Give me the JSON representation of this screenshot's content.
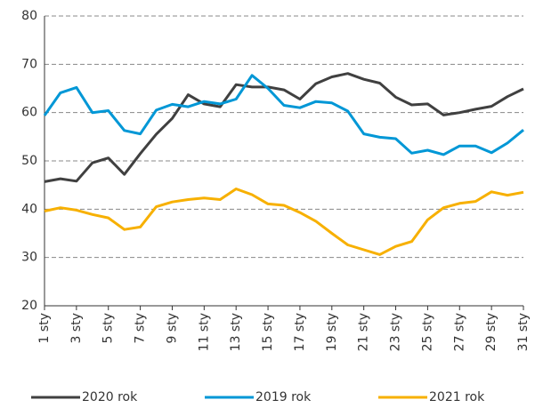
{
  "chart_data": {
    "type": "line",
    "categories": [
      "1 sty",
      null,
      "3 sty",
      null,
      "5 sty",
      null,
      "7 sty",
      null,
      "9 sty",
      null,
      "11 sty",
      null,
      "13 sty",
      null,
      "15 sty",
      null,
      "17 sty",
      null,
      "19 sty",
      null,
      "21 sty",
      null,
      "23 sty",
      null,
      "25 sty",
      null,
      "27 sty",
      null,
      "29 sty",
      null,
      "31 sty"
    ],
    "series": [
      {
        "name": "2020 rok",
        "color": "#404040",
        "values": [
          45.7,
          46.3,
          45.8,
          49.6,
          50.6,
          47.2,
          51.5,
          55.5,
          58.8,
          63.7,
          61.8,
          61.2,
          65.8,
          65.3,
          65.3,
          64.7,
          62.8,
          66.0,
          67.4,
          68.1,
          66.9,
          66.1,
          63.2,
          61.6,
          61.8,
          59.5,
          60.0,
          60.7,
          61.3,
          63.3,
          64.9
        ]
      },
      {
        "name": "2019 rok",
        "color": "#0097d6",
        "values": [
          59.4,
          64.1,
          65.2,
          60.0,
          60.4,
          56.3,
          55.6,
          60.5,
          61.7,
          61.2,
          62.3,
          61.8,
          62.8,
          67.7,
          65.0,
          61.5,
          61.0,
          62.3,
          62.0,
          60.3,
          55.6,
          54.9,
          54.6,
          51.6,
          52.2,
          51.3,
          53.1,
          53.1,
          51.7,
          53.7,
          56.4
        ]
      },
      {
        "name": "2021 rok",
        "color": "#f7b000",
        "values": [
          39.6,
          40.3,
          39.8,
          38.9,
          38.2,
          35.8,
          36.3,
          40.5,
          41.5,
          42.0,
          42.3,
          42.0,
          44.2,
          43.0,
          41.1,
          40.8,
          39.3,
          37.5,
          35.0,
          32.6,
          31.6,
          30.6,
          32.3,
          33.3,
          37.8,
          40.3,
          41.2,
          41.6,
          43.6,
          42.9,
          43.5
        ]
      }
    ],
    "ylim": [
      20,
      80
    ],
    "yticks": [
      20,
      30,
      40,
      50,
      60,
      70,
      80
    ],
    "grid": true,
    "legend": "bottom"
  }
}
